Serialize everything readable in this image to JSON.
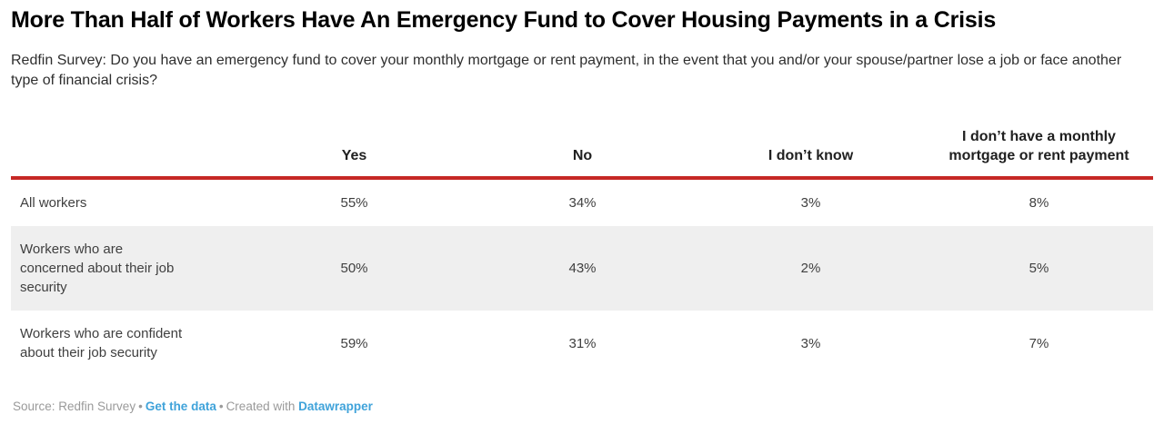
{
  "title": "More Than Half of Workers Have An Emergency Fund to Cover Housing Payments in a Crisis",
  "subtitle": "Redfin Survey: Do you have an emergency fund to cover your monthly mortgage or rent payment, in the event that you and/or your spouse/partner lose a job or face another type of financial crisis?",
  "table": {
    "columns": [
      "",
      "Yes",
      "No",
      "I don’t know",
      "I don’t have a monthly mortgage or rent payment"
    ],
    "rows": [
      {
        "label": "All workers",
        "values": [
          "55%",
          "34%",
          "3%",
          "8%"
        ]
      },
      {
        "label": "Workers who are\nconcerned about their job\nsecurity",
        "values": [
          "50%",
          "43%",
          "2%",
          "5%"
        ]
      },
      {
        "label": "Workers who are confident\nabout their job security",
        "values": [
          "59%",
          "31%",
          "3%",
          "7%"
        ]
      }
    ]
  },
  "footer": {
    "source_label": "Source: Redfin Survey",
    "separator": "•",
    "get_data_link": "Get the data",
    "created_with": "Created with",
    "datawrapper_link": "Datawrapper"
  },
  "colors": {
    "accent_rule": "#c62825",
    "row_alt_bg": "#efefef",
    "link": "#40a3da"
  },
  "chart_data": {
    "type": "table",
    "title": "More Than Half of Workers Have An Emergency Fund to Cover Housing Payments in a Crisis",
    "subtitle": "Redfin Survey: Do you have an emergency fund to cover your monthly mortgage or rent payment, in the event that you and/or your spouse/partner lose a job or face another type of financial crisis?",
    "columns": [
      "Yes",
      "No",
      "I don’t know",
      "I don’t have a monthly mortgage or rent payment"
    ],
    "units": "%",
    "rows": [
      {
        "category": "All workers",
        "values": [
          55,
          34,
          3,
          8
        ]
      },
      {
        "category": "Workers who are concerned about their job security",
        "values": [
          50,
          43,
          2,
          5
        ]
      },
      {
        "category": "Workers who are confident about their job security",
        "values": [
          59,
          31,
          3,
          7
        ]
      }
    ],
    "source": "Redfin Survey",
    "created_with": "Datawrapper"
  }
}
